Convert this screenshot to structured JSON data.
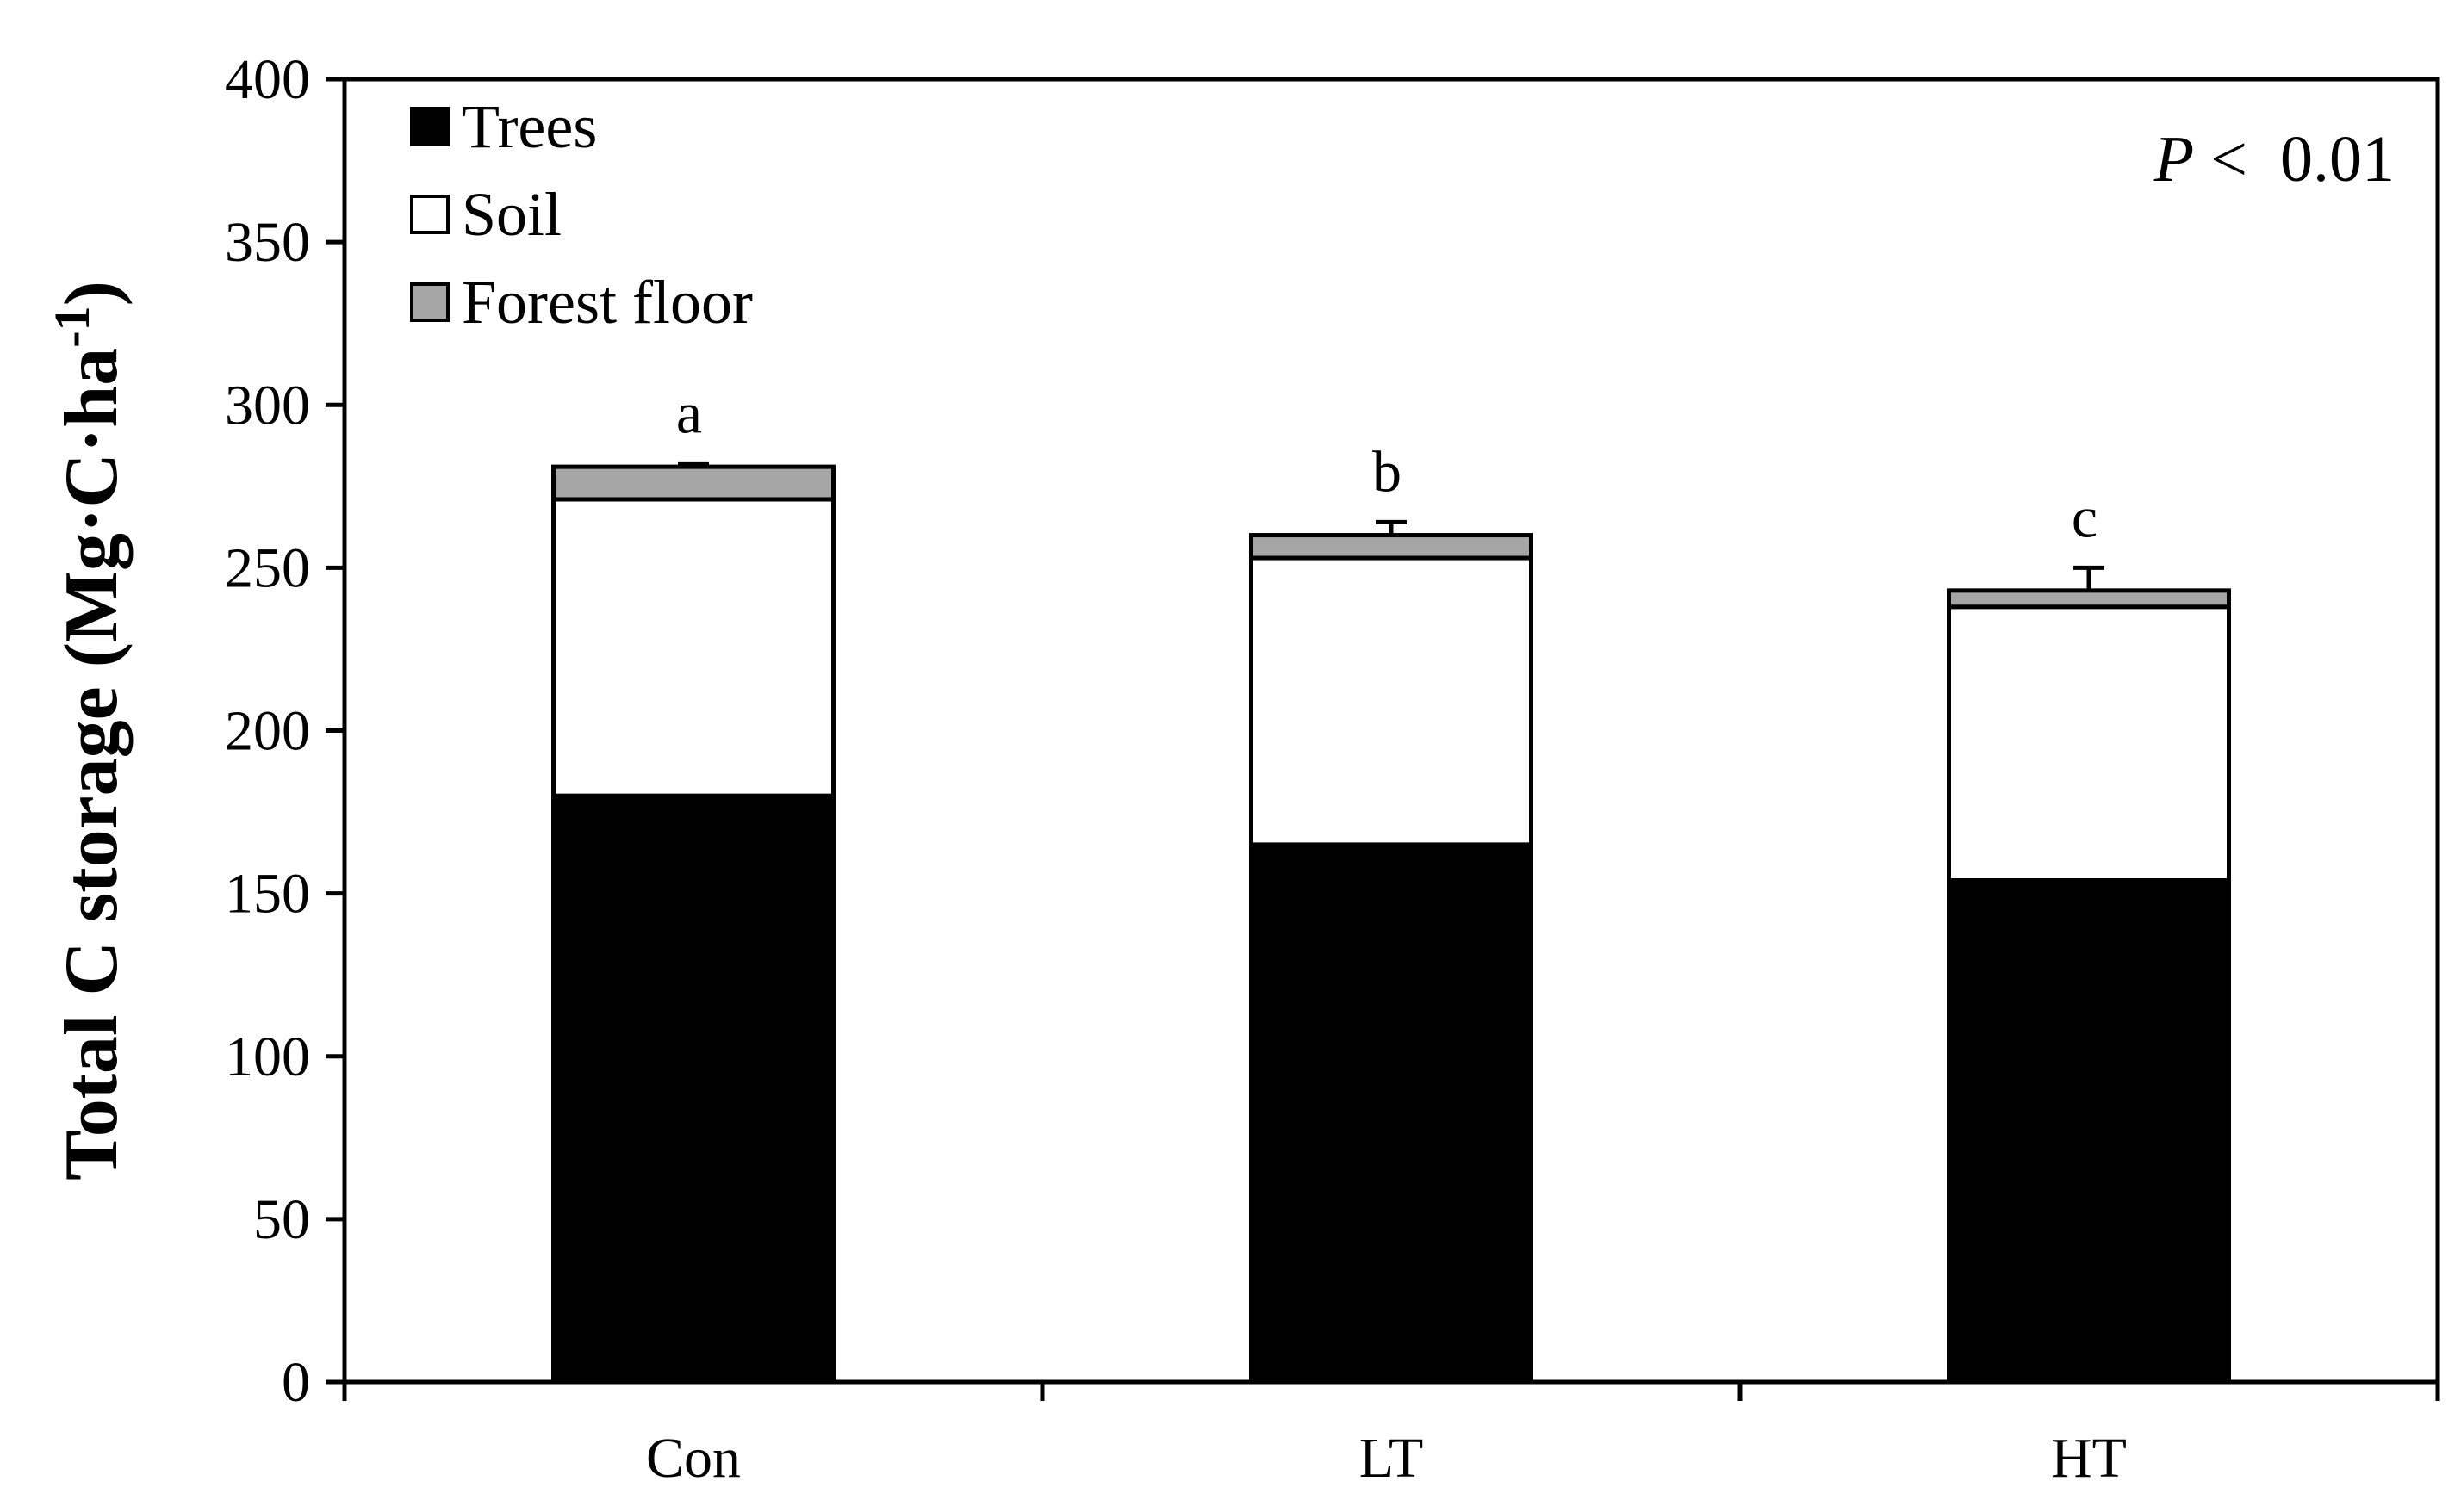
{
  "chart_data": {
    "type": "bar",
    "stacked": true,
    "categories": [
      "Con",
      "LT",
      "HT"
    ],
    "series": [
      {
        "name": "Trees",
        "color": "#000000",
        "values": [
          180,
          165,
          154
        ]
      },
      {
        "name": "Soil",
        "color": "#ffffff",
        "values": [
          91,
          88,
          84
        ]
      },
      {
        "name": "Forest floor",
        "color": "#a6a6a6",
        "values": [
          10,
          7,
          5
        ]
      }
    ],
    "error_bars": [
      1,
      4,
      7
    ],
    "significance_letters": [
      "a",
      "b",
      "c"
    ],
    "ylabel_main": "Total C storage (Mg·C·ha",
    "ylabel_sup": "-1",
    "ylabel_tail": ")",
    "ylim": [
      0,
      400
    ],
    "yticks": [
      "0",
      "50",
      "100",
      "150",
      "200",
      "250",
      "300",
      "350",
      "400"
    ],
    "annotation": {
      "italic": "P",
      "rest": " <  0.01"
    },
    "legend_placement": "top-left",
    "grid": false
  }
}
